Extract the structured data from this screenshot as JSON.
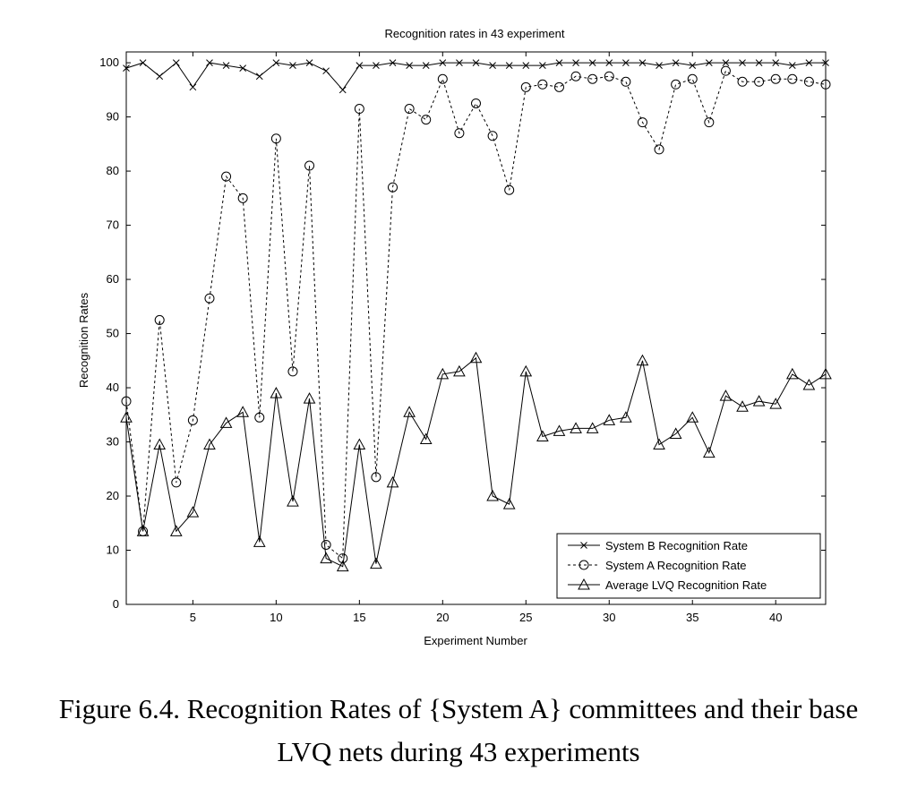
{
  "caption": {
    "line1": "Figure 6.4. Recognition Rates of {System A} committees and their base",
    "line2": "LVQ nets during 43 experiments"
  },
  "chart_data": {
    "type": "line",
    "title": "Recognition rates in 43 experiment",
    "xlabel": "Experiment Number",
    "ylabel": "Recognition Rates",
    "xlim": [
      1,
      43
    ],
    "ylim": [
      0,
      102
    ],
    "xticks": [
      5,
      10,
      15,
      20,
      25,
      30,
      35,
      40
    ],
    "yticks": [
      0,
      10,
      20,
      30,
      40,
      50,
      60,
      70,
      80,
      90,
      100
    ],
    "grid": false,
    "legend_position": "bottom-right",
    "x": [
      1,
      2,
      3,
      4,
      5,
      6,
      7,
      8,
      9,
      10,
      11,
      12,
      13,
      14,
      15,
      16,
      17,
      18,
      19,
      20,
      21,
      22,
      23,
      24,
      25,
      26,
      27,
      28,
      29,
      30,
      31,
      32,
      33,
      34,
      35,
      36,
      37,
      38,
      39,
      40,
      41,
      42,
      43
    ],
    "series": [
      {
        "name": "System B Recognition Rate",
        "marker": "x",
        "line": "solid",
        "values": [
          99,
          100,
          97.5,
          100,
          95.5,
          100,
          99.5,
          99,
          97.5,
          100,
          99.5,
          100,
          98.5,
          95,
          99.5,
          99.5,
          100,
          99.5,
          99.5,
          100,
          100,
          100,
          99.5,
          99.5,
          99.5,
          99.5,
          100,
          100,
          100,
          100,
          100,
          100,
          99.5,
          100,
          99.5,
          100,
          100,
          100,
          100,
          100,
          99.5,
          100,
          100
        ]
      },
      {
        "name": "System A Recognition Rate",
        "marker": "circle",
        "line": "dashed",
        "values": [
          37.5,
          13.5,
          52.5,
          22.5,
          34,
          56.5,
          79,
          75,
          34.5,
          86,
          43,
          81,
          11,
          8.5,
          91.5,
          23.5,
          77,
          91.5,
          89.5,
          97,
          87,
          92.5,
          86.5,
          76.5,
          95.5,
          96,
          95.5,
          97.5,
          97,
          97.5,
          96.5,
          89,
          84,
          96,
          97,
          89,
          98.5,
          96.5,
          96.5,
          97,
          97,
          96.5,
          96
        ]
      },
      {
        "name": "Average LVQ Recognition Rate",
        "marker": "triangle",
        "line": "solid",
        "values": [
          34.5,
          13.5,
          29.5,
          13.5,
          17,
          29.5,
          33.5,
          35.5,
          11.5,
          39,
          19,
          38,
          8.5,
          7,
          29.5,
          7.5,
          22.5,
          35.5,
          30.5,
          42.5,
          43,
          45.5,
          20,
          18.5,
          43,
          31,
          32,
          32.5,
          32.5,
          34,
          34.5,
          45,
          29.5,
          31.5,
          34.5,
          28,
          38.5,
          36.5,
          37.5,
          37,
          42.5,
          40.5,
          42.5
        ]
      }
    ]
  }
}
